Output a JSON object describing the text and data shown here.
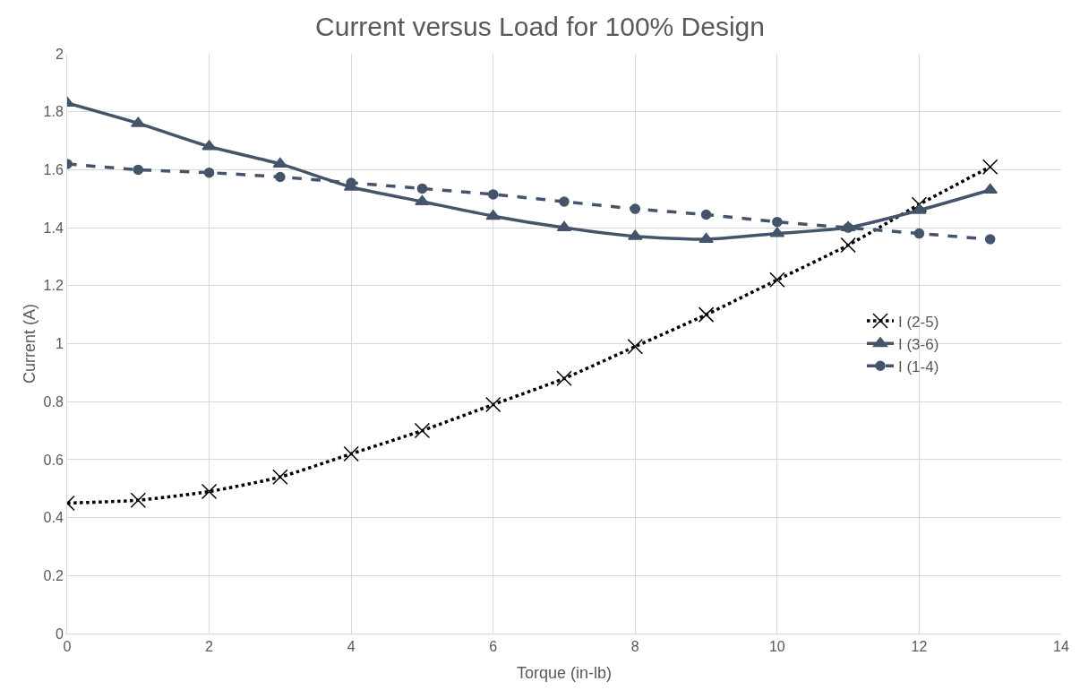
{
  "chart_data": {
    "type": "line",
    "title": "Current versus Load for 100% Design",
    "xlabel": "Torque (in-lb)",
    "ylabel": "Current (A)",
    "x": [
      0,
      1,
      2,
      3,
      4,
      5,
      6,
      7,
      8,
      9,
      10,
      11,
      12,
      13
    ],
    "series": [
      {
        "name": "I (2-5)",
        "color": "#000000",
        "marker": "cross",
        "line_style": "dotted",
        "values": [
          0.45,
          0.46,
          0.49,
          0.54,
          0.62,
          0.7,
          0.79,
          0.88,
          0.99,
          1.1,
          1.22,
          1.34,
          1.48,
          1.61
        ]
      },
      {
        "name": "I (3-6)",
        "color": "#44546a",
        "marker": "triangle",
        "line_style": "solid",
        "values": [
          1.83,
          1.76,
          1.68,
          1.62,
          1.54,
          1.49,
          1.44,
          1.4,
          1.37,
          1.36,
          1.38,
          1.4,
          1.46,
          1.53
        ]
      },
      {
        "name": "I (1-4)",
        "color": "#44546a",
        "marker": "circle",
        "line_style": "dashed",
        "values": [
          1.62,
          1.6,
          1.59,
          1.575,
          1.555,
          1.535,
          1.515,
          1.49,
          1.465,
          1.445,
          1.42,
          1.4,
          1.38,
          1.36
        ]
      }
    ],
    "xlim": [
      0,
      14
    ],
    "xticks": [
      0,
      2,
      4,
      6,
      8,
      10,
      12,
      14
    ],
    "ylim": [
      0,
      2
    ],
    "yticks": [
      0,
      0.2,
      0.4,
      0.6,
      0.8,
      1,
      1.2,
      1.4,
      1.6,
      1.8,
      2
    ],
    "grid": true,
    "legend": "right"
  }
}
